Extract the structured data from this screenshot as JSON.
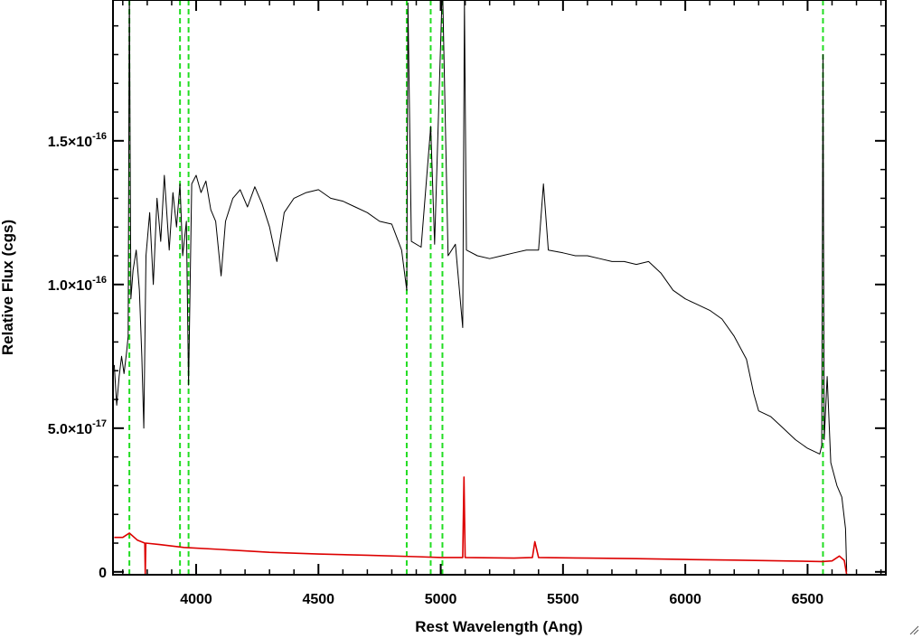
{
  "chart_data": {
    "type": "line",
    "xlabel": "Rest Wavelength (Ang)",
    "ylabel": "Relative Flux (cgs)",
    "xlim": [
      3660,
      6820
    ],
    "ylim": [
      -1e-18,
      1.99e-16
    ],
    "x_ticks": [
      4000,
      4500,
      5000,
      5500,
      6000,
      6500
    ],
    "x_tick_labels": [
      "4000",
      "4500",
      "5000",
      "5500",
      "6000",
      "6500"
    ],
    "y_ticks": [
      {
        "value": 0,
        "mantissa": "0",
        "exponent": ""
      },
      {
        "value": 5e-17,
        "mantissa": "5.0×10",
        "exponent": "-17"
      },
      {
        "value": 1e-16,
        "mantissa": "1.0×10",
        "exponent": "-16"
      },
      {
        "value": 1.5e-16,
        "mantissa": "1.5×10",
        "exponent": "-16"
      }
    ],
    "reference_lines_x": [
      3727,
      3934,
      3969,
      4861,
      4959,
      5007,
      6563
    ],
    "series": [
      {
        "color": "#000000",
        "values": [
          [
            3665,
            7.2e-17
          ],
          [
            3675,
            5.8e-17
          ],
          [
            3685,
            6.8e-17
          ],
          [
            3695,
            7.5e-17
          ],
          [
            3705,
            6.9e-17
          ],
          [
            3715,
            7.6e-17
          ],
          [
            3722,
            8.2e-17
          ],
          [
            3727,
            2.05e-16
          ],
          [
            3733,
            9.5e-17
          ],
          [
            3742,
            1.05e-16
          ],
          [
            3755,
            1.12e-16
          ],
          [
            3768,
            9.8e-17
          ],
          [
            3778,
            7.5e-17
          ],
          [
            3786,
            5e-17
          ],
          [
            3795,
            1.1e-16
          ],
          [
            3810,
            1.25e-16
          ],
          [
            3825,
            1e-16
          ],
          [
            3840,
            1.3e-16
          ],
          [
            3855,
            1.15e-16
          ],
          [
            3870,
            1.38e-16
          ],
          [
            3890,
            1.12e-16
          ],
          [
            3905,
            1.32e-16
          ],
          [
            3920,
            1.2e-16
          ],
          [
            3934,
            1.35e-16
          ],
          [
            3945,
            1.1e-16
          ],
          [
            3960,
            1.22e-16
          ],
          [
            3969,
            6.5e-17
          ],
          [
            3982,
            1.35e-16
          ],
          [
            4000,
            1.38e-16
          ],
          [
            4020,
            1.32e-16
          ],
          [
            4040,
            1.36e-16
          ],
          [
            4060,
            1.26e-16
          ],
          [
            4080,
            1.22e-16
          ],
          [
            4102,
            1.03e-16
          ],
          [
            4120,
            1.22e-16
          ],
          [
            4150,
            1.3e-16
          ],
          [
            4180,
            1.33e-16
          ],
          [
            4210,
            1.27e-16
          ],
          [
            4240,
            1.34e-16
          ],
          [
            4270,
            1.28e-16
          ],
          [
            4300,
            1.2e-16
          ],
          [
            4330,
            1.08e-16
          ],
          [
            4360,
            1.25e-16
          ],
          [
            4400,
            1.3e-16
          ],
          [
            4450,
            1.32e-16
          ],
          [
            4500,
            1.33e-16
          ],
          [
            4550,
            1.3e-16
          ],
          [
            4600,
            1.29e-16
          ],
          [
            4650,
            1.27e-16
          ],
          [
            4700,
            1.25e-16
          ],
          [
            4750,
            1.22e-16
          ],
          [
            4800,
            1.21e-16
          ],
          [
            4840,
            1.12e-16
          ],
          [
            4861,
            9.8e-17
          ],
          [
            4866,
            1.98e-16
          ],
          [
            4880,
            1.15e-16
          ],
          [
            4920,
            1.13e-16
          ],
          [
            4959,
            1.55e-16
          ],
          [
            4975,
            1.14e-16
          ],
          [
            5007,
            2.05e-16
          ],
          [
            5030,
            1.1e-16
          ],
          [
            5060,
            1.14e-16
          ],
          [
            5090,
            8.5e-17
          ],
          [
            5097,
            1.99e-16
          ],
          [
            5105,
            1.12e-16
          ],
          [
            5150,
            1.1e-16
          ],
          [
            5200,
            1.09e-16
          ],
          [
            5250,
            1.1e-16
          ],
          [
            5300,
            1.11e-16
          ],
          [
            5350,
            1.12e-16
          ],
          [
            5400,
            1.12e-16
          ],
          [
            5420,
            1.35e-16
          ],
          [
            5440,
            1.12e-16
          ],
          [
            5500,
            1.11e-16
          ],
          [
            5550,
            1.1e-16
          ],
          [
            5600,
            1.1e-16
          ],
          [
            5650,
            1.09e-16
          ],
          [
            5700,
            1.08e-16
          ],
          [
            5750,
            1.08e-16
          ],
          [
            5800,
            1.07e-16
          ],
          [
            5850,
            1.08e-16
          ],
          [
            5900,
            1.04e-16
          ],
          [
            5950,
            9.8e-17
          ],
          [
            6000,
            9.5e-17
          ],
          [
            6050,
            9.3e-17
          ],
          [
            6100,
            9.1e-17
          ],
          [
            6150,
            8.8e-17
          ],
          [
            6200,
            8.2e-17
          ],
          [
            6250,
            7.4e-17
          ],
          [
            6280,
            6.2e-17
          ],
          [
            6300,
            5.6e-17
          ],
          [
            6350,
            5.4e-17
          ],
          [
            6400,
            5e-17
          ],
          [
            6450,
            4.6e-17
          ],
          [
            6500,
            4.3e-17
          ],
          [
            6550,
            4.1e-17
          ],
          [
            6558,
            4.4e-17
          ],
          [
            6563,
            1.8e-16
          ],
          [
            6568,
            4.6e-17
          ],
          [
            6580,
            6.8e-17
          ],
          [
            6595,
            3.8e-17
          ],
          [
            6620,
            3e-17
          ],
          [
            6640,
            2.6e-17
          ],
          [
            6655,
            1.5e-17
          ],
          [
            6660,
            0
          ]
        ]
      },
      {
        "color": "#dd0000",
        "values": [
          [
            3665,
            1.2e-17
          ],
          [
            3700,
            1.2e-17
          ],
          [
            3727,
            1.35e-17
          ],
          [
            3760,
            1.1e-17
          ],
          [
            3790,
            1e-17
          ],
          [
            3792,
            -1e-18
          ],
          [
            3794,
            1e-17
          ],
          [
            3850,
            9.5e-18
          ],
          [
            3950,
            8.5e-18
          ],
          [
            4100,
            7.8e-18
          ],
          [
            4300,
            6.8e-18
          ],
          [
            4500,
            6.2e-18
          ],
          [
            4700,
            5.8e-18
          ],
          [
            4900,
            5.3e-18
          ],
          [
            5000,
            5e-18
          ],
          [
            5090,
            5e-18
          ],
          [
            5095,
            3.3e-17
          ],
          [
            5100,
            5e-18
          ],
          [
            5300,
            4.8e-18
          ],
          [
            5375,
            5e-18
          ],
          [
            5385,
            1.05e-17
          ],
          [
            5400,
            5e-18
          ],
          [
            5600,
            4.8e-18
          ],
          [
            5800,
            4.6e-18
          ],
          [
            6000,
            4.3e-18
          ],
          [
            6200,
            4.1e-18
          ],
          [
            6400,
            3.8e-18
          ],
          [
            6560,
            3.6e-18
          ],
          [
            6600,
            3.8e-18
          ],
          [
            6630,
            5.5e-18
          ],
          [
            6650,
            4e-18
          ],
          [
            6660,
            -1e-18
          ]
        ]
      }
    ]
  }
}
